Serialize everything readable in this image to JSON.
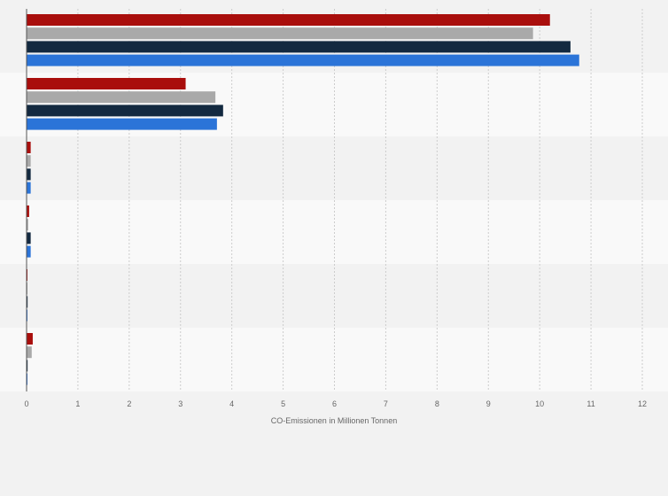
{
  "chart_data": {
    "type": "bar",
    "orientation": "horizontal",
    "title": "",
    "xlabel": "CO-Emissionen in Millionen Tonnen",
    "ylabel": "",
    "xlim": [
      0,
      12
    ],
    "x_ticks": [
      "0",
      "1",
      "2",
      "3",
      "4",
      "5",
      "6",
      "7",
      "8",
      "9",
      "10",
      "11",
      "12"
    ],
    "grid": true,
    "legend": "none",
    "categories": [
      "",
      "",
      "",
      "",
      "",
      ""
    ],
    "series": [
      {
        "color": "#a90e0c",
        "values": [
          10.2,
          3.1,
          0.08,
          0.05,
          0.01,
          0.12
        ]
      },
      {
        "color": "#a9a9a9",
        "values": [
          9.87,
          3.68,
          0.08,
          0.03,
          0.01,
          0.1
        ]
      },
      {
        "color": "#132940",
        "values": [
          10.6,
          3.83,
          0.08,
          0.08,
          0.02,
          0.02
        ]
      },
      {
        "color": "#2b74d8",
        "values": [
          10.77,
          3.71,
          0.08,
          0.08,
          0.01,
          0.01
        ]
      }
    ]
  }
}
